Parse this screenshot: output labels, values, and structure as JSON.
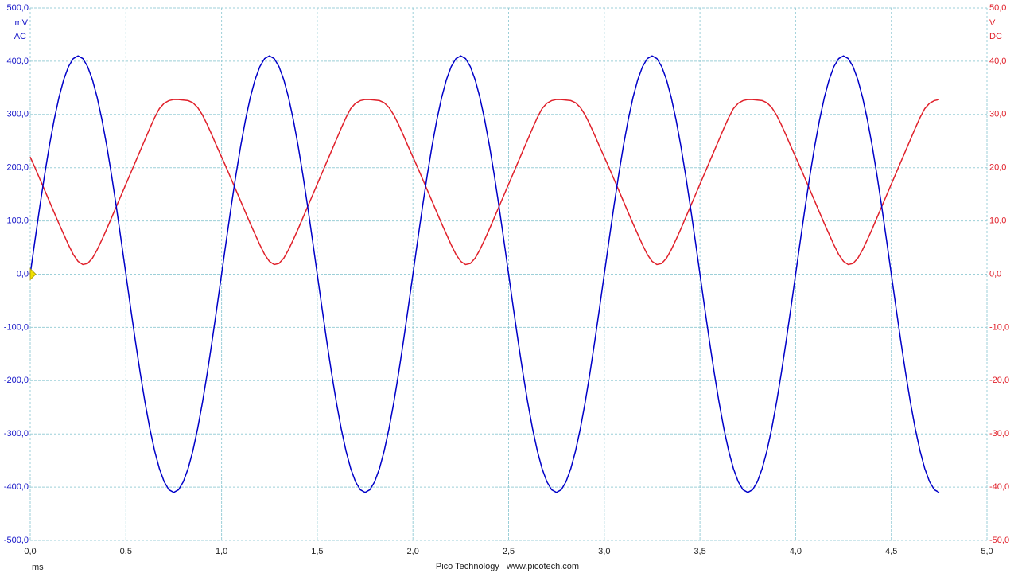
{
  "chart_data": {
    "type": "line",
    "y_unit": "mV",
    "y_mode": "AC",
    "y2_unit": "V",
    "y2_mode": "DC",
    "x_unit": "ms",
    "footer": "Pico Technology   www.picotech.com",
    "grid": true,
    "xlim": [
      0,
      5
    ],
    "xticks": [
      {
        "value": 0,
        "label": "0,0"
      },
      {
        "value": 0.5,
        "label": "0,5"
      },
      {
        "value": 1,
        "label": "1,0"
      },
      {
        "value": 1.5,
        "label": "1,5"
      },
      {
        "value": 2,
        "label": "2,0"
      },
      {
        "value": 2.5,
        "label": "2,5"
      },
      {
        "value": 3,
        "label": "3,0"
      },
      {
        "value": 3.5,
        "label": "3,5"
      },
      {
        "value": 4,
        "label": "4,0"
      },
      {
        "value": 4.5,
        "label": "4,5"
      },
      {
        "value": 5,
        "label": "5,0"
      }
    ],
    "ylim": [
      -500,
      500
    ],
    "yticks": [
      {
        "value": 500,
        "label": "500,0"
      },
      {
        "value": 400,
        "label": "400,0"
      },
      {
        "value": 300,
        "label": "300,0"
      },
      {
        "value": 200,
        "label": "200,0"
      },
      {
        "value": 100,
        "label": "100,0"
      },
      {
        "value": 0,
        "label": "0,0"
      },
      {
        "value": -100,
        "label": "-100,0"
      },
      {
        "value": -200,
        "label": "-200,0"
      },
      {
        "value": -300,
        "label": "-300,0"
      },
      {
        "value": -400,
        "label": "-400,0"
      },
      {
        "value": -500,
        "label": "-500,0"
      }
    ],
    "y2lim": [
      -50,
      50
    ],
    "y2ticks": [
      {
        "value": 50,
        "label": "50,0"
      },
      {
        "value": 40,
        "label": "40,0"
      },
      {
        "value": 30,
        "label": "30,0"
      },
      {
        "value": 20,
        "label": "20,0"
      },
      {
        "value": 10,
        "label": "10,0"
      },
      {
        "value": 0,
        "label": "0,0"
      },
      {
        "value": -10,
        "label": "-10,0"
      },
      {
        "value": -20,
        "label": "-20,0"
      },
      {
        "value": -30,
        "label": "-30,0"
      },
      {
        "value": -40,
        "label": "-40,0"
      },
      {
        "value": -50,
        "label": "-50,0"
      }
    ],
    "x": [
      0,
      0.025,
      0.05,
      0.075,
      0.1,
      0.125,
      0.15,
      0.175,
      0.2,
      0.225,
      0.25,
      0.275,
      0.3,
      0.325,
      0.35,
      0.375,
      0.4,
      0.425,
      0.45,
      0.475,
      0.5,
      0.525,
      0.55,
      0.575,
      0.6,
      0.625,
      0.65,
      0.675,
      0.7,
      0.725,
      0.75,
      0.775,
      0.8,
      0.825,
      0.85,
      0.875,
      0.9,
      0.925,
      0.95,
      0.975,
      1,
      1.025,
      1.05,
      1.075,
      1.1,
      1.125,
      1.15,
      1.175,
      1.2,
      1.225,
      1.25,
      1.275,
      1.3,
      1.325,
      1.35,
      1.375,
      1.4,
      1.425,
      1.45,
      1.475,
      1.5,
      1.525,
      1.55,
      1.575,
      1.6,
      1.625,
      1.65,
      1.675,
      1.7,
      1.725,
      1.75,
      1.775,
      1.8,
      1.825,
      1.85,
      1.875,
      1.9,
      1.925,
      1.95,
      1.975,
      2,
      2.025,
      2.05,
      2.075,
      2.1,
      2.125,
      2.15,
      2.175,
      2.2,
      2.225,
      2.25,
      2.275,
      2.3,
      2.325,
      2.35,
      2.375,
      2.4,
      2.425,
      2.45,
      2.475,
      2.5,
      2.525,
      2.55,
      2.575,
      2.6,
      2.625,
      2.65,
      2.675,
      2.7,
      2.725,
      2.75,
      2.775,
      2.8,
      2.825,
      2.85,
      2.875,
      2.9,
      2.925,
      2.95,
      2.975,
      3,
      3.025,
      3.05,
      3.075,
      3.1,
      3.125,
      3.15,
      3.175,
      3.2,
      3.225,
      3.25,
      3.275,
      3.3,
      3.325,
      3.35,
      3.375,
      3.4,
      3.425,
      3.45,
      3.475,
      3.5,
      3.525,
      3.55,
      3.575,
      3.6,
      3.625,
      3.65,
      3.675,
      3.7,
      3.725,
      3.75,
      3.775,
      3.8,
      3.825,
      3.85,
      3.875,
      3.9,
      3.925,
      3.95,
      3.975,
      4,
      4.025,
      4.05,
      4.075,
      4.1,
      4.125,
      4.15,
      4.175,
      4.2,
      4.225,
      4.25,
      4.275,
      4.3,
      4.325,
      4.35,
      4.375,
      4.4,
      4.425,
      4.45,
      4.475,
      4.5,
      4.525,
      4.55,
      4.575,
      4.6,
      4.625,
      4.65,
      4.675,
      4.7,
      4.725,
      4.75
    ],
    "series": [
      {
        "color": "#0000c8",
        "axis": "y",
        "values": [
          0,
          64.1,
          126.7,
          186.1,
          241,
          289.9,
          331.7,
          365.3,
          389.9,
          405,
          410,
          405,
          389.9,
          365.3,
          331.7,
          289.9,
          241,
          186.1,
          126.7,
          64.1,
          0,
          -64.1,
          -126.7,
          -186.1,
          -241,
          -289.9,
          -331.7,
          -365.3,
          -389.9,
          -405,
          -410,
          -405,
          -389.9,
          -365.3,
          -331.7,
          -289.9,
          -241,
          -186.1,
          -126.7,
          -64.1,
          0,
          64.1,
          126.7,
          186.1,
          241,
          289.9,
          331.7,
          365.3,
          389.9,
          405,
          410,
          405,
          389.9,
          365.3,
          331.7,
          289.9,
          241,
          186.1,
          126.7,
          64.1,
          0,
          -64.1,
          -126.7,
          -186.1,
          -241,
          -289.9,
          -331.7,
          -365.3,
          -389.9,
          -405,
          -410,
          -405,
          -389.9,
          -365.3,
          -331.7,
          -289.9,
          -241,
          -186.1,
          -126.7,
          -64.1,
          0,
          64.1,
          126.7,
          186.1,
          241,
          289.9,
          331.7,
          365.3,
          389.9,
          405,
          410,
          405,
          389.9,
          365.3,
          331.7,
          289.9,
          241,
          186.1,
          126.7,
          64.1,
          0,
          -64.1,
          -126.7,
          -186.1,
          -241,
          -289.9,
          -331.7,
          -365.3,
          -389.9,
          -405,
          -410,
          -405,
          -389.9,
          -365.3,
          -331.7,
          -289.9,
          -241,
          -186.1,
          -126.7,
          -64.1,
          0,
          64.1,
          126.7,
          186.1,
          241,
          289.9,
          331.7,
          365.3,
          389.9,
          405,
          410,
          405,
          389.9,
          365.3,
          331.7,
          289.9,
          241,
          186.1,
          126.7,
          64.1,
          0,
          -64.1,
          -126.7,
          -186.1,
          -241,
          -289.9,
          -331.7,
          -365.3,
          -389.9,
          -405,
          -410,
          -405,
          -389.9,
          -365.3,
          -331.7,
          -289.9,
          -241,
          -186.1,
          -126.7,
          -64.1,
          0,
          64.1,
          126.7,
          186.1,
          241,
          289.9,
          331.7,
          365.3,
          389.9,
          405,
          410,
          405,
          389.9,
          365.3,
          331.7,
          289.9,
          241,
          186.1,
          126.7,
          64.1,
          0,
          -64.1,
          -126.7,
          -186.1,
          -241,
          -289.9,
          -331.7,
          -365.3,
          -389.9,
          -405,
          -410
        ]
      },
      {
        "color": "#e0202a",
        "axis": "y2",
        "values": [
          22,
          20,
          17.9,
          15.8,
          13.7,
          11.6,
          9.5,
          7.5,
          5.5,
          3.7,
          2.4,
          1.8,
          2,
          3,
          4.6,
          6.5,
          8.5,
          10.6,
          12.7,
          14.8,
          16.9,
          19,
          21.1,
          23.2,
          25.3,
          27.4,
          29.4,
          31.1,
          32.1,
          32.6,
          32.8,
          32.8,
          32.7,
          32.6,
          32.2,
          31.3,
          29.9,
          28.1,
          26.1,
          24,
          22,
          20,
          17.9,
          15.8,
          13.7,
          11.6,
          9.5,
          7.5,
          5.5,
          3.7,
          2.4,
          1.8,
          2,
          3,
          4.6,
          6.5,
          8.5,
          10.6,
          12.7,
          14.8,
          16.9,
          19,
          21.1,
          23.2,
          25.3,
          27.4,
          29.4,
          31.1,
          32.1,
          32.6,
          32.8,
          32.8,
          32.7,
          32.6,
          32.2,
          31.3,
          29.9,
          28.1,
          26.1,
          24,
          22,
          20,
          17.9,
          15.8,
          13.7,
          11.6,
          9.5,
          7.5,
          5.5,
          3.7,
          2.4,
          1.8,
          2,
          3,
          4.6,
          6.5,
          8.5,
          10.6,
          12.7,
          14.8,
          16.9,
          19,
          21.1,
          23.2,
          25.3,
          27.4,
          29.4,
          31.1,
          32.1,
          32.6,
          32.8,
          32.8,
          32.7,
          32.6,
          32.2,
          31.3,
          29.9,
          28.1,
          26.1,
          24,
          22,
          20,
          17.9,
          15.8,
          13.7,
          11.6,
          9.5,
          7.5,
          5.5,
          3.7,
          2.4,
          1.8,
          2,
          3,
          4.6,
          6.5,
          8.5,
          10.6,
          12.7,
          14.8,
          16.9,
          19,
          21.1,
          23.2,
          25.3,
          27.4,
          29.4,
          31.1,
          32.1,
          32.6,
          32.8,
          32.8,
          32.7,
          32.6,
          32.2,
          31.3,
          29.9,
          28.1,
          26.1,
          24,
          22,
          20,
          17.9,
          15.8,
          13.7,
          11.6,
          9.5,
          7.5,
          5.5,
          3.7,
          2.4,
          1.8,
          2,
          3,
          4.6,
          6.5,
          8.5,
          10.6,
          12.7,
          14.8,
          16.9,
          19,
          21.1,
          23.2,
          25.3,
          27.4,
          29.4,
          31.1,
          32.1,
          32.6,
          32.8
        ]
      }
    ]
  }
}
